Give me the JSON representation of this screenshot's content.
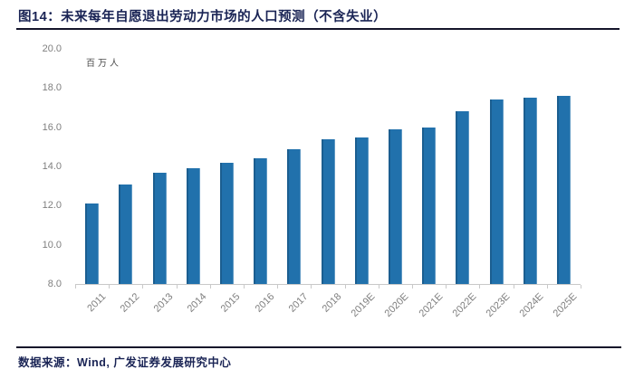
{
  "figure": {
    "title": "图14：未来每年自愿退出劳动力市场的人口预测（不含失业）",
    "source": "数据来源：Wind, 广发证券发展研究中心"
  },
  "chart_data": {
    "type": "bar",
    "title": "未来每年自愿退出劳动力市场的人口预测（不含失业）",
    "unit_label": "百万人",
    "categories": [
      "2011",
      "2012",
      "2013",
      "2014",
      "2015",
      "2016",
      "2017",
      "2018",
      "2019E",
      "2020E",
      "2021E",
      "2022E",
      "2023E",
      "2024E",
      "2025E"
    ],
    "values": [
      12.1,
      13.1,
      13.7,
      13.9,
      14.2,
      14.4,
      14.9,
      15.4,
      15.5,
      15.9,
      16.0,
      16.8,
      17.4,
      17.5,
      17.6
    ],
    "yticks": [
      "20.0",
      "18.0",
      "16.0",
      "14.0",
      "12.0",
      "10.0",
      "8.0"
    ],
    "ylim": [
      8.0,
      20.0
    ],
    "grid": false,
    "legend": null,
    "bar_color": "#2171ac",
    "axis_label_color": "#7f7f7f",
    "axis_line_color": "#c9c9c9"
  }
}
